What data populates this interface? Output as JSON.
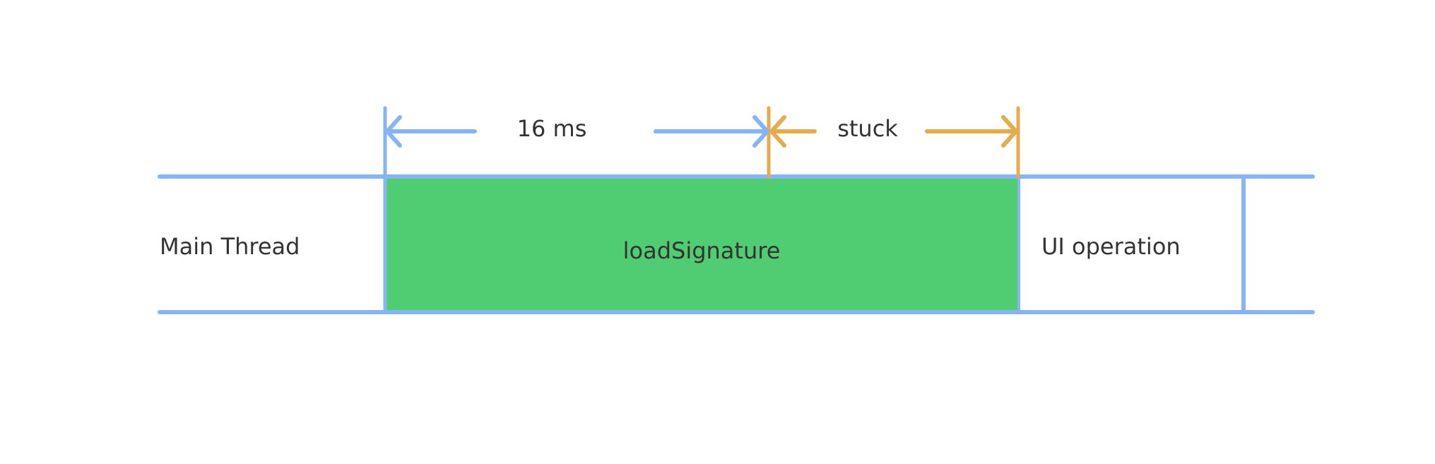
{
  "colors": {
    "track_line": "#86b4f5",
    "block_fill": "#50cc72",
    "blue_arrow": "#86b4f5",
    "orange_arrow": "#e6aa4f",
    "text": "#333333"
  },
  "labels": {
    "main_thread": "Main Thread",
    "load_signature": "loadSignature",
    "ui_operation": "UI operation",
    "frame_duration": "16 ms",
    "stuck": "stuck"
  }
}
